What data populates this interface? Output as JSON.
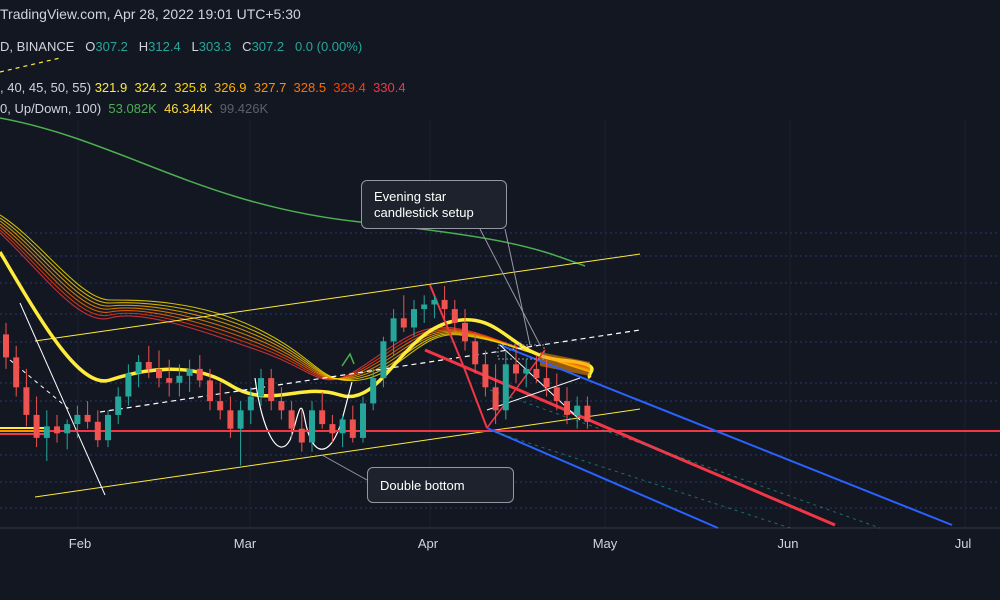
{
  "header": {
    "source": "TradingView.com, Apr 28, 2022 19:01 UTC+5:30",
    "symbol_line": {
      "symbol": "D, BINANCE",
      "o_label": "O",
      "o_value": "307.2",
      "h_label": "H",
      "h_value": "312.4",
      "l_label": "L",
      "l_value": "303.3",
      "c_label": "C",
      "c_value": "307.2",
      "change": "0.0 (0.00%)"
    },
    "ema_line": {
      "params": ", 40, 45, 50, 55)",
      "values": [
        "321.9",
        "324.2",
        "325.8",
        "326.9",
        "327.7",
        "328.5",
        "329.4",
        "330.4"
      ],
      "colors": [
        "#ffeb3b",
        "#ffe600",
        "#ffd600",
        "#ffb300",
        "#ff9100",
        "#ff6d00",
        "#ff3d00",
        "#f23645"
      ]
    },
    "volume_line": {
      "params": "0, Up/Down, 100)",
      "values": [
        "53.082K",
        "46.344K",
        "99.426K"
      ],
      "colors": [
        "#4caf50",
        "#ffd740",
        "#5d606b"
      ]
    }
  },
  "annotations": {
    "evening_star": "Evening star\ncandlestick setup",
    "double_bottom": "Double bottom"
  },
  "chart_data": {
    "type": "candlestick",
    "x_ticks": [
      "Feb",
      "Mar",
      "Apr",
      "May",
      "Jun",
      "Jul"
    ],
    "horizontal_support": 303,
    "candles": [
      {
        "o": 345,
        "h": 350,
        "l": 330,
        "c": 335
      },
      {
        "o": 335,
        "h": 340,
        "l": 318,
        "c": 322
      },
      {
        "o": 322,
        "h": 330,
        "l": 305,
        "c": 310
      },
      {
        "o": 310,
        "h": 318,
        "l": 296,
        "c": 300
      },
      {
        "o": 300,
        "h": 312,
        "l": 290,
        "c": 305
      },
      {
        "o": 305,
        "h": 310,
        "l": 298,
        "c": 302
      },
      {
        "o": 302,
        "h": 308,
        "l": 295,
        "c": 306
      },
      {
        "o": 306,
        "h": 314,
        "l": 300,
        "c": 310
      },
      {
        "o": 310,
        "h": 316,
        "l": 304,
        "c": 307
      },
      {
        "o": 307,
        "h": 312,
        "l": 296,
        "c": 299
      },
      {
        "o": 299,
        "h": 312,
        "l": 296,
        "c": 310
      },
      {
        "o": 310,
        "h": 322,
        "l": 306,
        "c": 318
      },
      {
        "o": 318,
        "h": 332,
        "l": 314,
        "c": 328
      },
      {
        "o": 328,
        "h": 336,
        "l": 322,
        "c": 333
      },
      {
        "o": 333,
        "h": 340,
        "l": 326,
        "c": 330
      },
      {
        "o": 330,
        "h": 338,
        "l": 322,
        "c": 326
      },
      {
        "o": 326,
        "h": 334,
        "l": 318,
        "c": 324
      },
      {
        "o": 324,
        "h": 332,
        "l": 318,
        "c": 327
      },
      {
        "o": 327,
        "h": 334,
        "l": 320,
        "c": 330
      },
      {
        "o": 330,
        "h": 336,
        "l": 322,
        "c": 325
      },
      {
        "o": 325,
        "h": 330,
        "l": 312,
        "c": 316
      },
      {
        "o": 316,
        "h": 324,
        "l": 308,
        "c": 312
      },
      {
        "o": 312,
        "h": 318,
        "l": 300,
        "c": 304
      },
      {
        "o": 304,
        "h": 316,
        "l": 288,
        "c": 312
      },
      {
        "o": 312,
        "h": 322,
        "l": 306,
        "c": 318
      },
      {
        "o": 318,
        "h": 330,
        "l": 314,
        "c": 326
      },
      {
        "o": 326,
        "h": 330,
        "l": 312,
        "c": 316
      },
      {
        "o": 316,
        "h": 322,
        "l": 308,
        "c": 312
      },
      {
        "o": 312,
        "h": 316,
        "l": 300,
        "c": 304
      },
      {
        "o": 304,
        "h": 312,
        "l": 294,
        "c": 298
      },
      {
        "o": 298,
        "h": 316,
        "l": 294,
        "c": 312
      },
      {
        "o": 312,
        "h": 320,
        "l": 304,
        "c": 306
      },
      {
        "o": 306,
        "h": 310,
        "l": 298,
        "c": 302
      },
      {
        "o": 302,
        "h": 310,
        "l": 296,
        "c": 308
      },
      {
        "o": 308,
        "h": 314,
        "l": 298,
        "c": 300
      },
      {
        "o": 300,
        "h": 318,
        "l": 298,
        "c": 315
      },
      {
        "o": 315,
        "h": 330,
        "l": 312,
        "c": 326
      },
      {
        "o": 326,
        "h": 344,
        "l": 322,
        "c": 342
      },
      {
        "o": 342,
        "h": 356,
        "l": 336,
        "c": 352
      },
      {
        "o": 352,
        "h": 362,
        "l": 346,
        "c": 348
      },
      {
        "o": 348,
        "h": 360,
        "l": 344,
        "c": 356
      },
      {
        "o": 356,
        "h": 362,
        "l": 350,
        "c": 358
      },
      {
        "o": 358,
        "h": 362,
        "l": 352,
        "c": 360
      },
      {
        "o": 360,
        "h": 366,
        "l": 352,
        "c": 356
      },
      {
        "o": 356,
        "h": 360,
        "l": 346,
        "c": 350
      },
      {
        "o": 350,
        "h": 356,
        "l": 338,
        "c": 342
      },
      {
        "o": 342,
        "h": 346,
        "l": 328,
        "c": 332
      },
      {
        "o": 332,
        "h": 338,
        "l": 318,
        "c": 322
      },
      {
        "o": 322,
        "h": 332,
        "l": 306,
        "c": 312
      },
      {
        "o": 312,
        "h": 338,
        "l": 308,
        "c": 332
      },
      {
        "o": 332,
        "h": 340,
        "l": 324,
        "c": 328
      },
      {
        "o": 328,
        "h": 334,
        "l": 322,
        "c": 330
      },
      {
        "o": 330,
        "h": 336,
        "l": 324,
        "c": 326
      },
      {
        "o": 326,
        "h": 334,
        "l": 318,
        "c": 322
      },
      {
        "o": 322,
        "h": 328,
        "l": 312,
        "c": 316
      },
      {
        "o": 316,
        "h": 322,
        "l": 306,
        "c": 310
      },
      {
        "o": 310,
        "h": 318,
        "l": 304,
        "c": 314
      },
      {
        "o": 314,
        "h": 318,
        "l": 304,
        "c": 307
      }
    ]
  }
}
